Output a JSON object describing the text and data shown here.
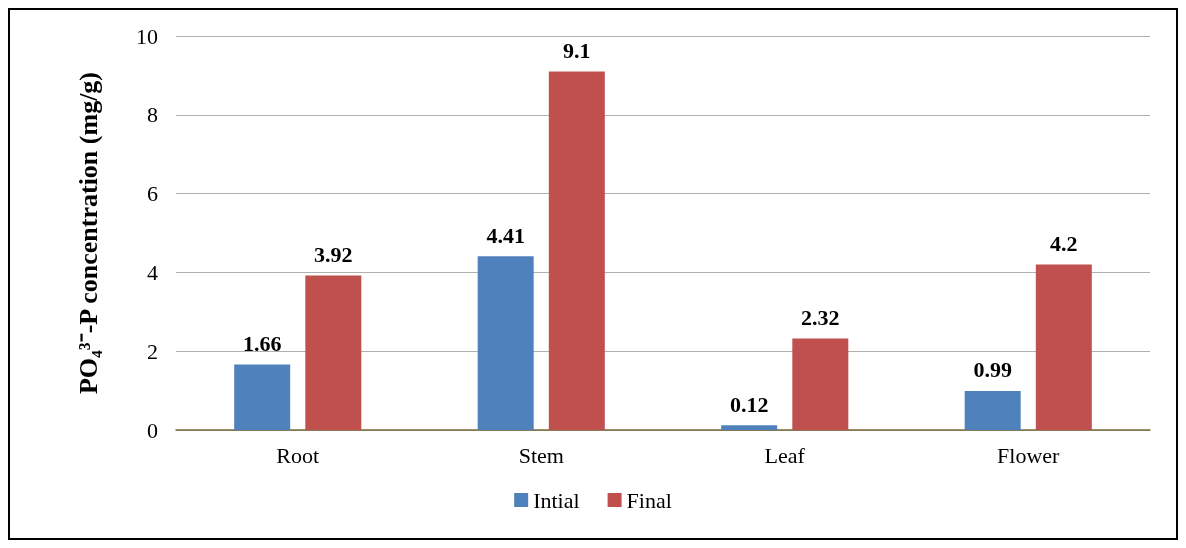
{
  "chart_data": {
    "type": "bar",
    "ylabel": "PO₄³⁻-P concentration (mg/g)",
    "categories": [
      "Root",
      "Stem",
      "Leaf",
      "Flower"
    ],
    "series": [
      {
        "name": "Intial",
        "color": "#4f81bd",
        "values": [
          1.66,
          4.41,
          0.12,
          0.99
        ]
      },
      {
        "name": "Final",
        "color": "#c0504d",
        "values": [
          3.92,
          9.1,
          2.32,
          4.2
        ]
      }
    ],
    "ylim": [
      0,
      10
    ],
    "yticks": [
      0,
      2,
      4,
      6,
      8,
      10
    ],
    "grid": "y",
    "legend": "bottom",
    "data_labels": true
  }
}
